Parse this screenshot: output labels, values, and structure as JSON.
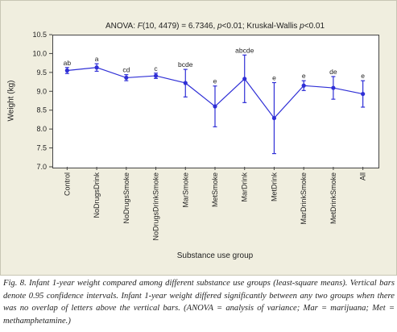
{
  "chart_data": {
    "type": "line",
    "title_parts": [
      "ANOVA: ",
      "F",
      "(10, 4479) = 6.7346, ",
      "p",
      "<0.01; Kruskal-Wallis ",
      "p",
      "<0.01"
    ],
    "xlabel": "Substance use group",
    "ylabel": "Weight (kg)",
    "ylim": [
      7.0,
      10.5
    ],
    "yticks": [
      "7.0",
      "7.5",
      "8.0",
      "8.5",
      "9.0",
      "9.5",
      "10.0",
      "10.5"
    ],
    "categories": [
      "Control",
      "NoDrugsDrink",
      "NoDrugsSmoke",
      "NoDrugsDrinkSmoke",
      "MarSmoke",
      "MetSmoke",
      "MarDrink",
      "MetDrink",
      "MarDrinkSmoke",
      "MetDrinkSmoke",
      "All"
    ],
    "series": [
      {
        "values": [
          9.55,
          9.63,
          9.36,
          9.41,
          9.22,
          8.6,
          9.33,
          8.29,
          9.15,
          9.09,
          8.93
        ],
        "ci_lower": [
          9.47,
          9.53,
          9.28,
          9.34,
          8.85,
          8.06,
          8.7,
          7.35,
          9.02,
          8.79,
          8.58
        ],
        "ci_upper": [
          9.63,
          9.73,
          9.44,
          9.48,
          9.58,
          9.14,
          9.96,
          9.23,
          9.28,
          9.39,
          9.28
        ],
        "letters": [
          "ab",
          "a",
          "cd",
          "c",
          "bcde",
          "e",
          "abcde",
          "e",
          "e",
          "de",
          "e"
        ]
      }
    ],
    "grid": false,
    "series_color": "#2f2fd6"
  },
  "caption": "Fig. 8. Infant 1-year weight compared among different substance use groups (least-square means). Vertical bars denote 0.95 confidence intervals. Infant 1-year weight differed significantly between any two groups when there was no overlap of letters above the vertical bars. (ANOVA = analysis of variance; Mar = marijuana; Met = methamphetamine.)"
}
